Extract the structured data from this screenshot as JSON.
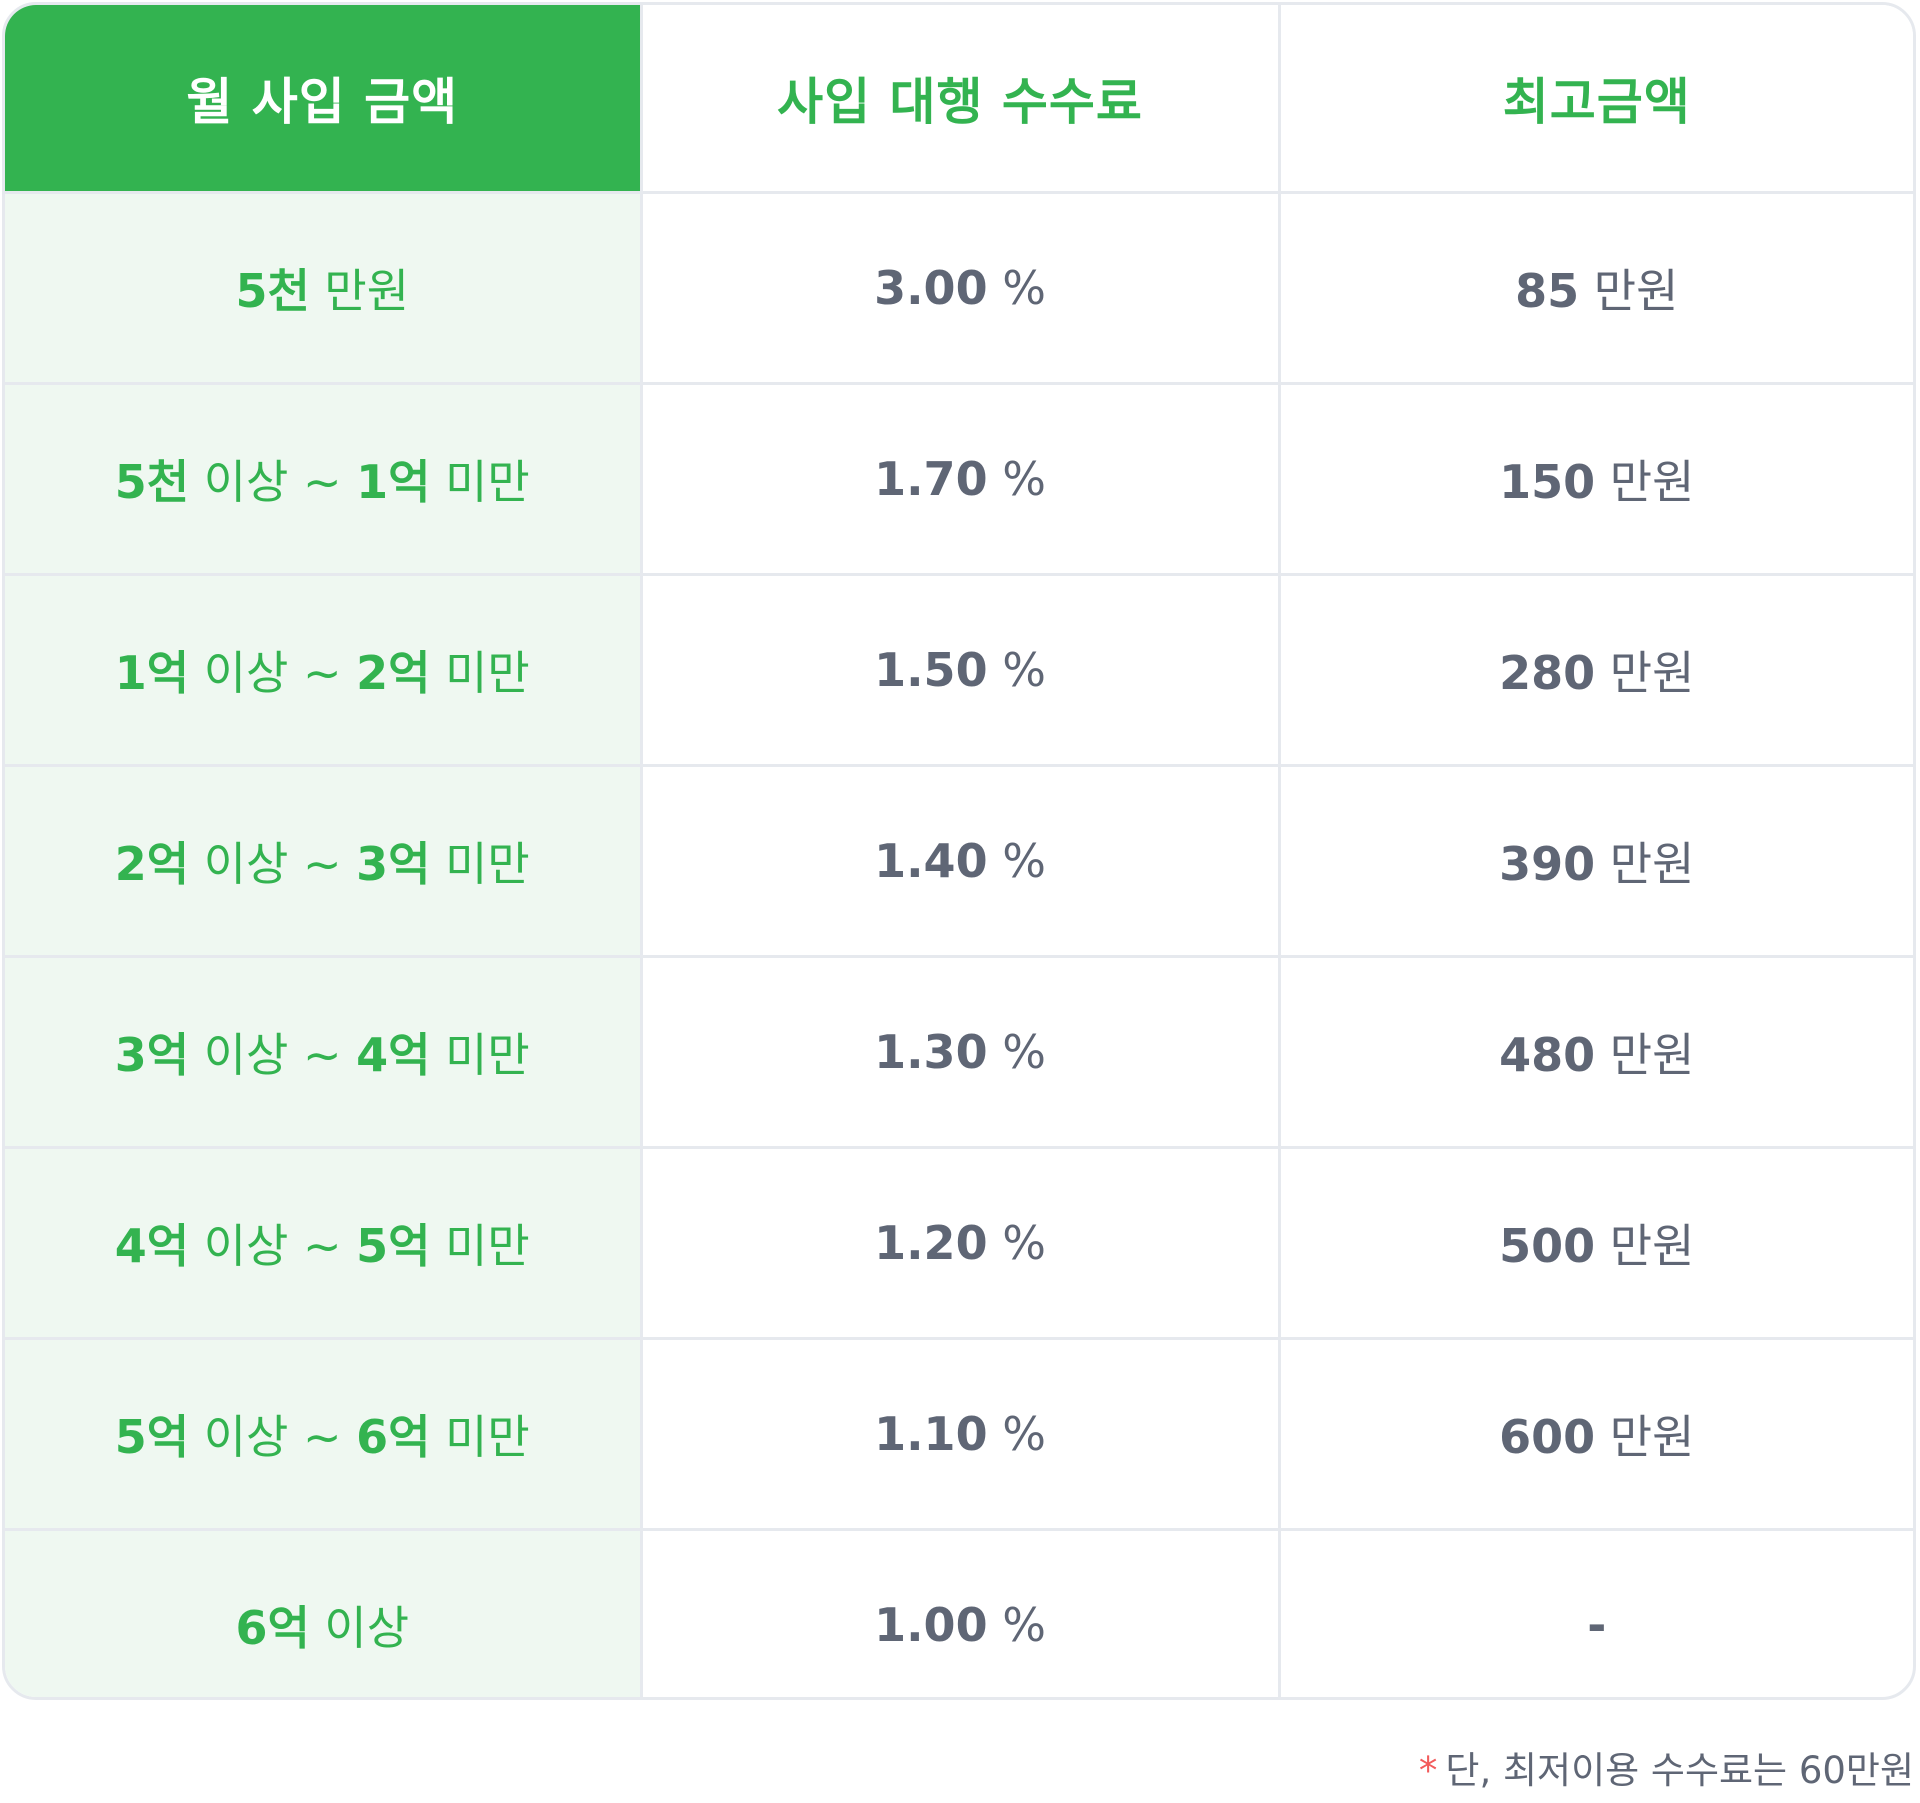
{
  "table": {
    "headers": [
      "월 사입 금액",
      "사입 대행 수수료",
      "최고금액"
    ],
    "rows": [
      {
        "range": [
          "5천",
          " 만원"
        ],
        "rate": [
          "3.00",
          " %"
        ],
        "max": [
          "85",
          " 만원"
        ]
      },
      {
        "range": [
          "5천",
          " 이상 ~ ",
          "1억",
          " 미만"
        ],
        "rate": [
          "1.70",
          " %"
        ],
        "max": [
          "150",
          " 만원"
        ]
      },
      {
        "range": [
          "1억",
          " 이상 ~ ",
          "2억",
          " 미만"
        ],
        "rate": [
          "1.50",
          " %"
        ],
        "max": [
          "280",
          " 만원"
        ]
      },
      {
        "range": [
          "2억",
          " 이상 ~ ",
          "3억",
          " 미만"
        ],
        "rate": [
          "1.40",
          " %"
        ],
        "max": [
          "390",
          " 만원"
        ]
      },
      {
        "range": [
          "3억",
          " 이상 ~ ",
          "4억",
          " 미만"
        ],
        "rate": [
          "1.30",
          " %"
        ],
        "max": [
          "480",
          " 만원"
        ]
      },
      {
        "range": [
          "4억",
          " 이상 ~ ",
          "5억",
          " 미만"
        ],
        "rate": [
          "1.20",
          " %"
        ],
        "max": [
          "500",
          " 만원"
        ]
      },
      {
        "range": [
          "5억",
          " 이상 ~ ",
          "6억",
          " 미만"
        ],
        "rate": [
          "1.10",
          " %"
        ],
        "max": [
          "600",
          " 만원"
        ]
      },
      {
        "range": [
          "6억",
          " 이상"
        ],
        "rate": [
          "1.00",
          " %"
        ],
        "max": [
          "-",
          ""
        ]
      }
    ]
  },
  "note": {
    "star": "*",
    "text": "단, 최저이용 수수료는 60만원"
  },
  "colors": {
    "accent_green": "#33b350",
    "range_cell_bg": "#eff8f1",
    "value_text": "#5f6675",
    "border": "#e6e9ee",
    "note_star": "#f25b5b"
  }
}
